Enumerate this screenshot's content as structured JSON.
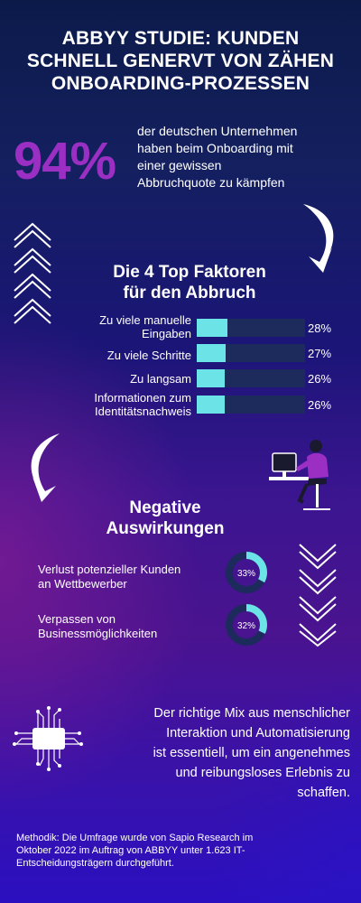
{
  "header": {
    "title": "ABBYY STUDIE: KUNDEN\nSCHNELL GENERVT VON ZÄHEN\nONBOARDING-PROZESSEN"
  },
  "stat": {
    "value": "94%",
    "text": "der deutschen Unternehmen\nhaben beim Onboarding mit\neiner gewissen\nAbbruchquote zu kämpfen"
  },
  "factors": {
    "title": "Die 4 Top Faktoren\nfür den Abbruch"
  },
  "impact": {
    "title": "Negative\nAuswirkungen"
  },
  "closing": {
    "text": "Der richtige Mix aus menschlicher\nInteraktion und Automatisierung\nist essentiell, um ein angenehmes\nund reibungsloses Erlebnis zu\nschaffen."
  },
  "method": {
    "text": "Methodik: Die Umfrage wurde von Sapio Research im\nOktober 2022 im Auftrag von ABBYY unter 1.623 IT-\nEntscheidungsträgern durchgeführt."
  },
  "icons": {
    "chevron_up_stack": "chevron-up-stack-icon",
    "chevron_down_stack": "chevron-down-stack-icon",
    "curved_arrow_right": "curved-arrow-down-right-icon",
    "curved_arrow_left": "curved-arrow-down-left-icon",
    "person_at_desk": "person-at-computer-icon",
    "circuit_chip": "circuit-chip-icon"
  },
  "colors": {
    "accent_purple": "#9b2fc4",
    "bar_cyan": "#6ce3e6",
    "donut_track": "#1c2a5c"
  },
  "chart_data": [
    {
      "type": "bar",
      "orientation": "horizontal",
      "categories": [
        "Zu viele manuelle\nEingaben",
        "Zu viele Schritte",
        "Zu langsam",
        "Informationen zum\nIdentitätsnachweis"
      ],
      "values": [
        28,
        27,
        26,
        26
      ],
      "value_labels": [
        "28%",
        "27%",
        "26%",
        "26%"
      ],
      "unit": "%",
      "xlim": [
        0,
        100
      ]
    },
    {
      "type": "pie",
      "style": "donut",
      "categories": [
        "Verlust potenzieller Kunden\nan Wettbewerber",
        "Verpassen von\nBusinessmöglichkeiten"
      ],
      "values": [
        33,
        32
      ],
      "value_labels": [
        "33%",
        "32%"
      ],
      "unit": "%"
    }
  ]
}
